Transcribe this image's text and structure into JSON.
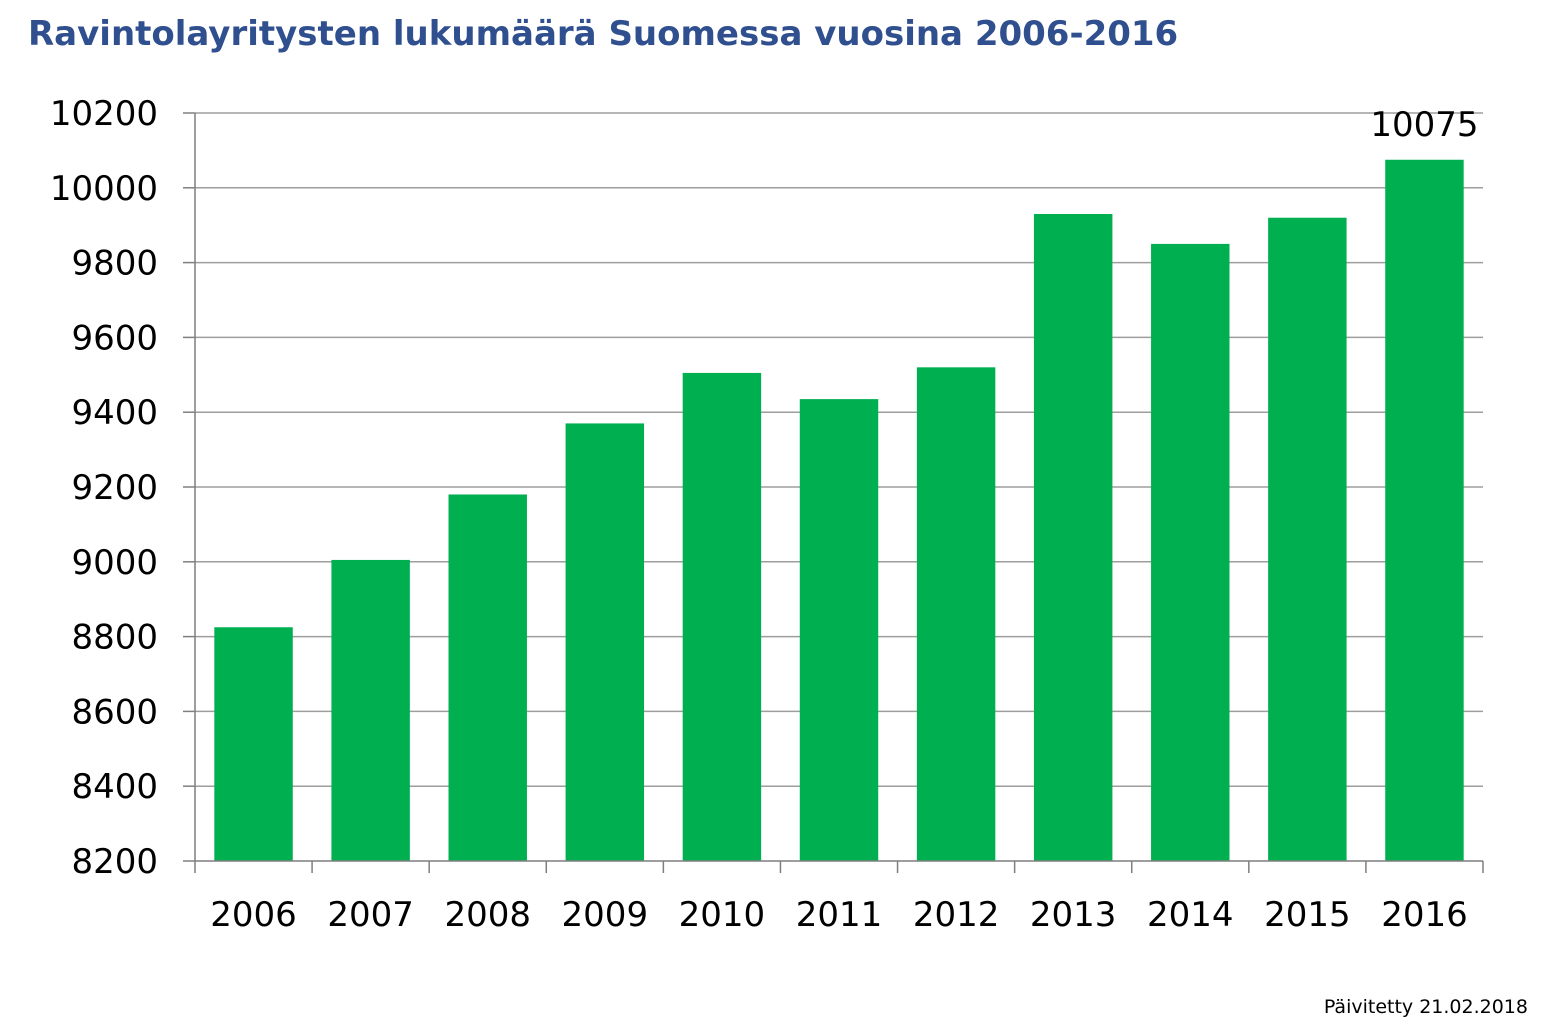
{
  "title": "Ravintolayritysten lukumäärä Suomessa vuosina 2006-2016",
  "footer": "Päivitetty 21.02.2018",
  "colors": {
    "title": "#2f4f8f",
    "bar": "#00b050",
    "grid": "#9e9e9e",
    "axis": "#7f7f7f",
    "text": "#000000"
  },
  "chart_data": {
    "type": "bar",
    "categories": [
      "2006",
      "2007",
      "2008",
      "2009",
      "2010",
      "2011",
      "2012",
      "2013",
      "2014",
      "2015",
      "2016"
    ],
    "values": [
      8825,
      9005,
      9180,
      9370,
      9505,
      9435,
      9520,
      9930,
      9850,
      9920,
      10075
    ],
    "data_labels": [
      null,
      null,
      null,
      null,
      null,
      null,
      null,
      null,
      null,
      null,
      "10075"
    ],
    "ylim": [
      8200,
      10200
    ],
    "yticks": [
      8200,
      8400,
      8600,
      8800,
      9000,
      9200,
      9400,
      9600,
      9800,
      10000,
      10200
    ],
    "xlabel": "",
    "ylabel": "",
    "grid": true,
    "legend": "none"
  }
}
